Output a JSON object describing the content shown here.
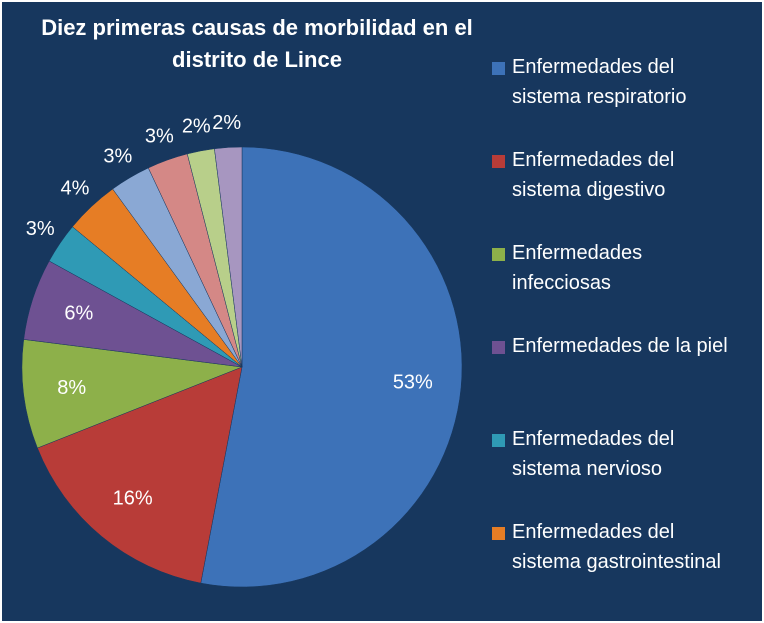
{
  "chart_data": {
    "type": "pie",
    "title": "Diez primeras causas de morbilidad en el distrito de Lince",
    "categories": [
      "Enfermedades del sistema respiratorio",
      "Enfermedades del sistema digestivo",
      "Enfermedades infecciosas",
      "Enfermedades de la piel",
      "Enfermedades del sistema nervioso",
      "Enfermedades del sistema gastrointestinal",
      null,
      null,
      null,
      null
    ],
    "values": [
      53,
      16,
      8,
      6,
      3,
      4,
      3,
      3,
      2,
      2
    ],
    "value_labels": [
      "53%",
      "16%",
      "8%",
      "6%",
      "3%",
      "4%",
      "3%",
      "3%",
      "2%",
      "2%"
    ],
    "colors": [
      "#3d72b8",
      "#b83c38",
      "#8db04a",
      "#6e5192",
      "#2f9ab5",
      "#e67d25",
      "#8aa8d4",
      "#d48886",
      "#b8cf8a",
      "#a796c0"
    ]
  }
}
